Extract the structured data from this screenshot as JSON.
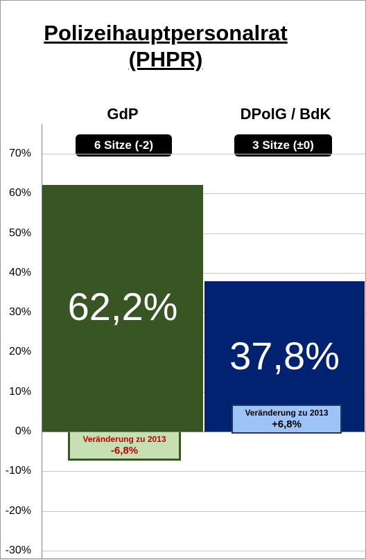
{
  "chart_data": {
    "type": "bar",
    "title_line1": "Polizeihauptpersonalrat",
    "title_line2": "(PHPR)",
    "categories": [
      "GdP",
      "DPolG / BdK"
    ],
    "values": [
      62.2,
      37.8
    ],
    "value_labels": [
      "62,2%",
      "37,8%"
    ],
    "seats": [
      "6 Sitze (-2)",
      "3 Sitze (±0)"
    ],
    "change_caption": "Veränderung zu 2013",
    "change_values": [
      -6.8,
      6.8
    ],
    "change_labels": [
      "-6,8%",
      "+6,8%"
    ],
    "ylim": [
      -30,
      75
    ],
    "yticks": [
      70,
      60,
      50,
      40,
      30,
      20,
      10,
      0,
      -10,
      -20,
      -30
    ],
    "ytick_labels": [
      "70%",
      "60%",
      "50%",
      "40%",
      "30%",
      "20%",
      "10%",
      "0%",
      "-10%",
      "-20%",
      "-30%"
    ],
    "grid": true,
    "colors": {
      "gdp_bar": "#375623",
      "dpolg_bar": "#002270",
      "gdp_change_fill": "#c6e0b4",
      "gdp_change_border": "#375623",
      "gdp_change_text": "#c00000",
      "dpolg_change_fill": "#9dc3f7",
      "dpolg_change_border": "#1f3864",
      "dpolg_change_text": "#000000"
    }
  }
}
